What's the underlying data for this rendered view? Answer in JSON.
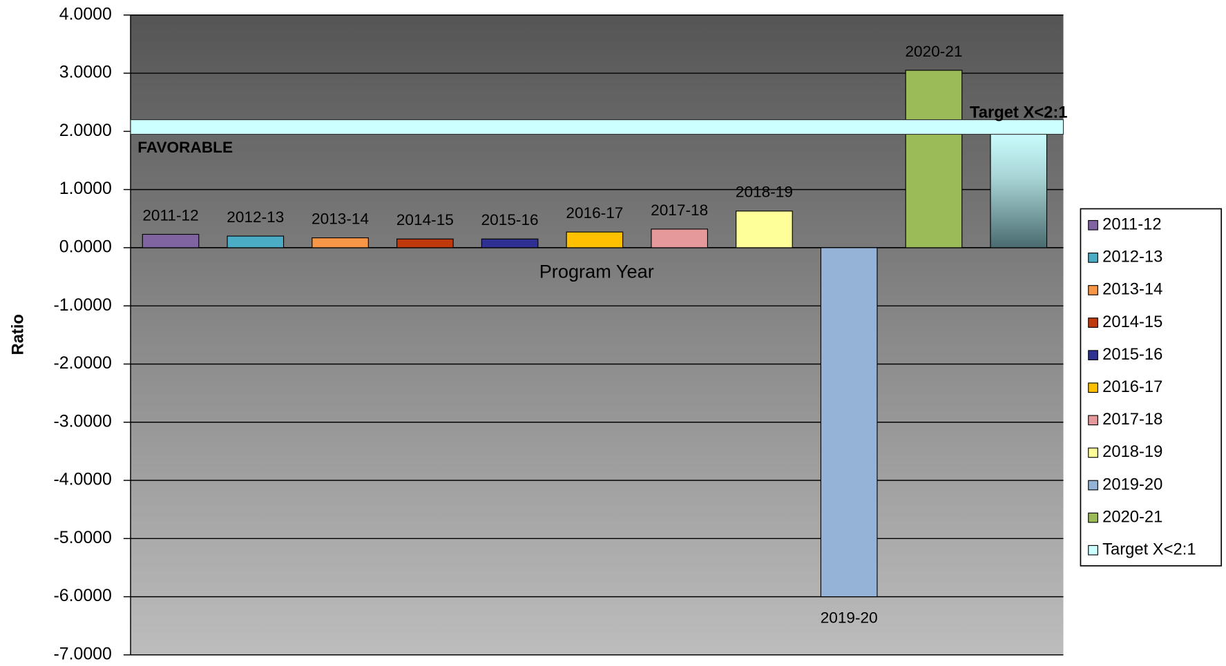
{
  "chart_data": {
    "type": "bar",
    "y_label": "Ratio",
    "x_label": "Program Year",
    "categories": [
      "2011-12",
      "2012-13",
      "2013-14",
      "2014-15",
      "2015-16",
      "2016-17",
      "2017-18",
      "2018-19",
      "2019-20",
      "2020-21",
      "Target X<2:1"
    ],
    "values": [
      0.23,
      0.2,
      0.17,
      0.15,
      0.15,
      0.27,
      0.32,
      0.63,
      -6.0,
      3.05,
      2.0
    ],
    "colors": [
      "#8064a2",
      "#4bacc6",
      "#f79646",
      "#c0390b",
      "#2e3192",
      "#ffc000",
      "#e6999a",
      "#ffff99",
      "#95b3d7",
      "#9bbb59",
      "#ccffff"
    ],
    "ylim": [
      -7,
      4
    ],
    "yticks": [
      {
        "value": 4,
        "label": "4.0000"
      },
      {
        "value": 3,
        "label": "3.0000"
      },
      {
        "value": 2,
        "label": "2.0000"
      },
      {
        "value": 1,
        "label": "1.0000"
      },
      {
        "value": 0,
        "label": "0.0000"
      },
      {
        "value": -1,
        "label": "-1.0000"
      },
      {
        "value": -2,
        "label": "-2.0000"
      },
      {
        "value": -3,
        "label": "-3.0000"
      },
      {
        "value": -4,
        "label": "-4.0000"
      },
      {
        "value": -5,
        "label": "-5.0000"
      },
      {
        "value": -6,
        "label": "-6.0000"
      },
      {
        "value": -7,
        "label": "-7.0000"
      }
    ],
    "grid": true,
    "reference_band": [
      1.95,
      2.2
    ],
    "annotation": "FAVORABLE",
    "legend": "right"
  }
}
